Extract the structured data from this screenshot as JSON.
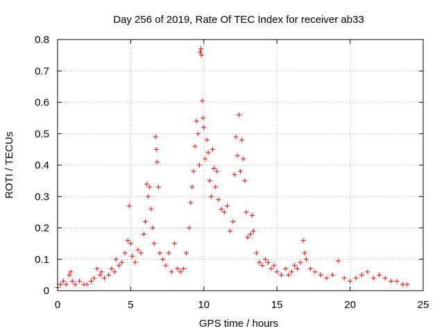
{
  "chart_data": {
    "type": "scatter",
    "title": "Day 256 of 2019, Rate Of TEC Index for receiver ab33",
    "xlabel": "GPS time / hours",
    "ylabel": "ROTI / TECUs",
    "xlim": [
      0,
      25
    ],
    "ylim": [
      0,
      0.8
    ],
    "xticks": [
      "0",
      "5",
      "10",
      "15",
      "20",
      "25"
    ],
    "yticks": [
      "0",
      "0.1",
      "0.2",
      "0.3",
      "0.4",
      "0.5",
      "0.6",
      "0.7",
      "0.8"
    ],
    "grid": true,
    "marker": "+",
    "marker_color": "#ff0000",
    "series": [
      {
        "name": "",
        "points": [
          [
            0.0,
            0.01
          ],
          [
            0.2,
            0.02
          ],
          [
            0.4,
            0.03
          ],
          [
            0.6,
            0.02
          ],
          [
            0.8,
            0.05
          ],
          [
            0.9,
            0.06
          ],
          [
            1.0,
            0.03
          ],
          [
            1.2,
            0.02
          ],
          [
            1.5,
            0.03
          ],
          [
            1.8,
            0.02
          ],
          [
            2.0,
            0.02
          ],
          [
            2.3,
            0.03
          ],
          [
            2.5,
            0.04
          ],
          [
            2.7,
            0.07
          ],
          [
            2.9,
            0.05
          ],
          [
            3.0,
            0.06
          ],
          [
            3.2,
            0.04
          ],
          [
            3.5,
            0.05
          ],
          [
            3.7,
            0.07
          ],
          [
            3.9,
            0.06
          ],
          [
            4.0,
            0.1
          ],
          [
            4.2,
            0.08
          ],
          [
            4.4,
            0.09
          ],
          [
            4.6,
            0.12
          ],
          [
            4.8,
            0.16
          ],
          [
            4.9,
            0.27
          ],
          [
            5.0,
            0.15
          ],
          [
            5.1,
            0.11
          ],
          [
            5.3,
            0.09
          ],
          [
            5.5,
            0.13
          ],
          [
            5.7,
            0.12
          ],
          [
            5.9,
            0.18
          ],
          [
            6.0,
            0.22
          ],
          [
            6.1,
            0.34
          ],
          [
            6.2,
            0.3
          ],
          [
            6.3,
            0.33
          ],
          [
            6.4,
            0.26
          ],
          [
            6.5,
            0.2
          ],
          [
            6.6,
            0.15
          ],
          [
            6.7,
            0.49
          ],
          [
            6.75,
            0.45
          ],
          [
            6.8,
            0.41
          ],
          [
            6.9,
            0.33
          ],
          [
            7.0,
            0.12
          ],
          [
            7.2,
            0.1
          ],
          [
            7.4,
            0.08
          ],
          [
            7.6,
            0.12
          ],
          [
            7.8,
            0.06
          ],
          [
            8.0,
            0.15
          ],
          [
            8.2,
            0.07
          ],
          [
            8.4,
            0.06
          ],
          [
            8.6,
            0.07
          ],
          [
            8.8,
            0.12
          ],
          [
            9.0,
            0.2
          ],
          [
            9.1,
            0.28
          ],
          [
            9.2,
            0.33
          ],
          [
            9.3,
            0.38
          ],
          [
            9.4,
            0.46
          ],
          [
            9.5,
            0.54
          ],
          [
            9.6,
            0.5
          ],
          [
            9.7,
            0.4
          ],
          [
            9.75,
            0.76
          ],
          [
            9.8,
            0.77
          ],
          [
            9.85,
            0.75
          ],
          [
            9.9,
            0.605
          ],
          [
            9.95,
            0.55
          ],
          [
            10.0,
            0.52
          ],
          [
            10.1,
            0.42
          ],
          [
            10.2,
            0.48
          ],
          [
            10.3,
            0.44
          ],
          [
            10.4,
            0.35
          ],
          [
            10.5,
            0.3
          ],
          [
            10.6,
            0.45
          ],
          [
            10.7,
            0.39
          ],
          [
            10.8,
            0.33
          ],
          [
            10.9,
            0.38
          ],
          [
            11.0,
            0.29
          ],
          [
            11.2,
            0.26
          ],
          [
            11.4,
            0.25
          ],
          [
            11.6,
            0.27
          ],
          [
            11.8,
            0.19
          ],
          [
            12.0,
            0.22
          ],
          [
            12.1,
            0.37
          ],
          [
            12.2,
            0.49
          ],
          [
            12.3,
            0.43
          ],
          [
            12.4,
            0.56
          ],
          [
            12.5,
            0.38
          ],
          [
            12.6,
            0.48
          ],
          [
            12.7,
            0.42
          ],
          [
            12.8,
            0.35
          ],
          [
            12.9,
            0.25
          ],
          [
            13.0,
            0.17
          ],
          [
            13.2,
            0.18
          ],
          [
            13.3,
            0.24
          ],
          [
            13.4,
            0.19
          ],
          [
            13.6,
            0.12
          ],
          [
            13.8,
            0.09
          ],
          [
            14.0,
            0.08
          ],
          [
            14.2,
            0.1
          ],
          [
            14.4,
            0.09
          ],
          [
            14.6,
            0.07
          ],
          [
            14.8,
            0.08
          ],
          [
            15.0,
            0.06
          ],
          [
            15.3,
            0.05
          ],
          [
            15.6,
            0.07
          ],
          [
            15.8,
            0.05
          ],
          [
            16.0,
            0.06
          ],
          [
            16.2,
            0.08
          ],
          [
            16.4,
            0.07
          ],
          [
            16.6,
            0.09
          ],
          [
            16.8,
            0.16
          ],
          [
            16.9,
            0.12
          ],
          [
            17.0,
            0.1
          ],
          [
            17.3,
            0.07
          ],
          [
            17.6,
            0.06
          ],
          [
            18.0,
            0.05
          ],
          [
            18.4,
            0.04
          ],
          [
            18.8,
            0.05
          ],
          [
            19.2,
            0.095
          ],
          [
            19.6,
            0.04
          ],
          [
            20.0,
            0.03
          ],
          [
            20.4,
            0.04
          ],
          [
            20.8,
            0.05
          ],
          [
            21.2,
            0.06
          ],
          [
            21.6,
            0.04
          ],
          [
            22.0,
            0.05
          ],
          [
            22.4,
            0.04
          ],
          [
            22.8,
            0.03
          ],
          [
            23.2,
            0.03
          ],
          [
            23.6,
            0.02
          ],
          [
            23.9,
            0.02
          ]
        ]
      }
    ]
  }
}
